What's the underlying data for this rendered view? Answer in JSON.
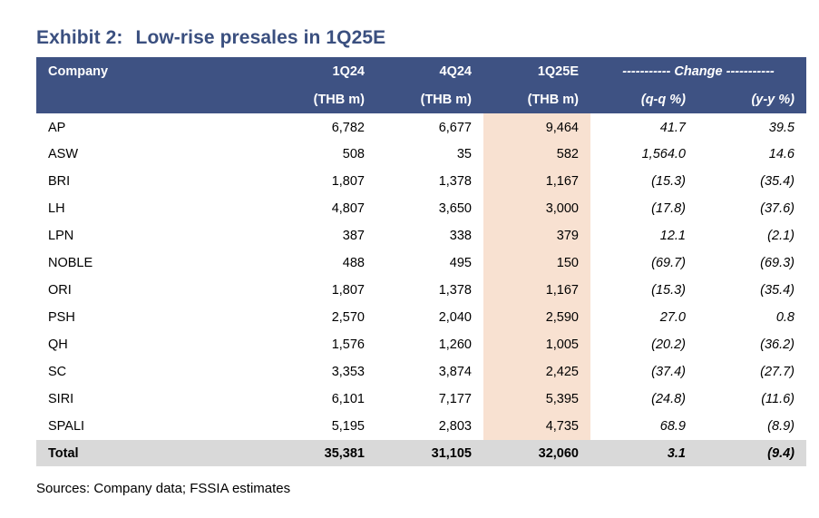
{
  "title": {
    "exhibit": "Exhibit 2:",
    "text": "Low-rise presales in 1Q25E"
  },
  "table": {
    "header_row1": [
      "Company",
      "1Q24",
      "4Q24",
      "1Q25E",
      "----------- Change -----------"
    ],
    "header_row2": [
      "(THB m)",
      "(THB m)",
      "(THB m)",
      "(q-q %)",
      "(y-y %)"
    ],
    "rows": [
      [
        "AP",
        "6,782",
        "6,677",
        "9,464",
        "41.7",
        "39.5"
      ],
      [
        "ASW",
        "508",
        "35",
        "582",
        "1,564.0",
        "14.6"
      ],
      [
        "BRI",
        "1,807",
        "1,378",
        "1,167",
        "(15.3)",
        "(35.4)"
      ],
      [
        "LH",
        "4,807",
        "3,650",
        "3,000",
        "(17.8)",
        "(37.6)"
      ],
      [
        "LPN",
        "387",
        "338",
        "379",
        "12.1",
        "(2.1)"
      ],
      [
        "NOBLE",
        "488",
        "495",
        "150",
        "(69.7)",
        "(69.3)"
      ],
      [
        "ORI",
        "1,807",
        "1,378",
        "1,167",
        "(15.3)",
        "(35.4)"
      ],
      [
        "PSH",
        "2,570",
        "2,040",
        "2,590",
        "27.0",
        "0.8"
      ],
      [
        "QH",
        "1,576",
        "1,260",
        "1,005",
        "(20.2)",
        "(36.2)"
      ],
      [
        "SC",
        "3,353",
        "3,874",
        "2,425",
        "(37.4)",
        "(27.7)"
      ],
      [
        "SIRI",
        "6,101",
        "7,177",
        "5,395",
        "(24.8)",
        "(11.6)"
      ],
      [
        "SPALI",
        "5,195",
        "2,803",
        "4,735",
        "68.9",
        "(8.9)"
      ]
    ],
    "total": [
      "Total",
      "35,381",
      "31,105",
      "32,060",
      "3.1",
      "(9.4)"
    ]
  },
  "source": "Sources: Company data; FSSIA estimates",
  "colors": {
    "header_bg": "#3e5283",
    "title": "#3a4f7f",
    "highlight": "#f8e1d1",
    "total_bg": "#d9d9d9"
  }
}
